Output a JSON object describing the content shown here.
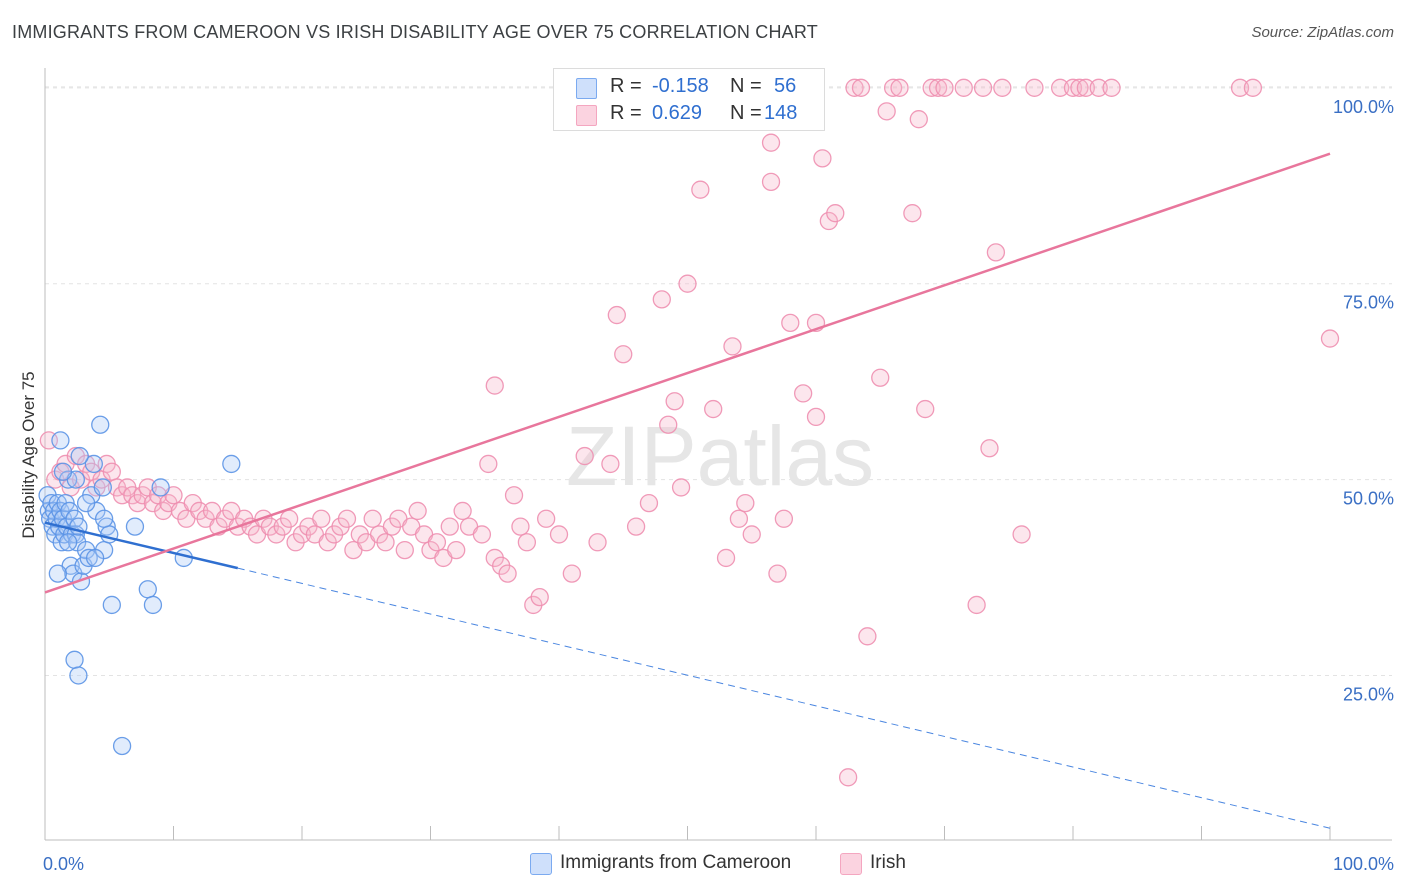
{
  "title": "IMMIGRANTS FROM CAMEROON VS IRISH DISABILITY AGE OVER 75 CORRELATION CHART",
  "source": "Source: ZipAtlas.com",
  "watermark": "ZIPatlas",
  "legend": {
    "rows": [
      {
        "r_label": "R =",
        "r_value": "-0.158",
        "n_label": "N =",
        "n_value": "56",
        "color": "#7baaf0"
      },
      {
        "r_label": "R =",
        "r_value": "0.629",
        "n_label": "N =",
        "n_value": "148",
        "color": "#f4a6c0"
      }
    ]
  },
  "bottom_legend": [
    {
      "label": "Immigrants from Cameroon",
      "color": "#7baaf0"
    },
    {
      "label": "Irish",
      "color": "#f4a6c0"
    }
  ],
  "chart_data": {
    "type": "scatter",
    "title": "IMMIGRANTS FROM CAMEROON VS IRISH DISABILITY AGE OVER 75 CORRELATION CHART",
    "xlabel": "",
    "ylabel": "Disability Age Over 75",
    "xlim": [
      0,
      100
    ],
    "ylim": [
      4,
      101
    ],
    "x_tick_labels": [
      "0.0%",
      "100.0%"
    ],
    "y_tick_labels": [
      "25.0%",
      "50.0%",
      "75.0%",
      "100.0%"
    ],
    "y_ticks": [
      25,
      50,
      75,
      100
    ],
    "grid": "horizontal dashed",
    "legend_position": "top-center",
    "series": [
      {
        "name": "Immigrants from Cameroon",
        "color": "#5b93e6",
        "r": -0.158,
        "n": 56,
        "trend": {
          "x0": 0,
          "y0": 44.5,
          "x1": 15,
          "y1": 38.7,
          "dash_to_x": 100,
          "dash_to_y": 5.5
        },
        "points": [
          [
            0.2,
            48
          ],
          [
            0.3,
            46
          ],
          [
            0.4,
            45
          ],
          [
            0.5,
            47
          ],
          [
            0.6,
            44
          ],
          [
            0.7,
            46
          ],
          [
            0.8,
            43
          ],
          [
            0.9,
            45
          ],
          [
            1.0,
            47
          ],
          [
            1.1,
            44
          ],
          [
            1.2,
            46
          ],
          [
            1.3,
            42
          ],
          [
            1.4,
            45
          ],
          [
            1.5,
            43
          ],
          [
            1.6,
            47
          ],
          [
            1.7,
            44
          ],
          [
            1.8,
            50
          ],
          [
            1.9,
            46
          ],
          [
            2.0,
            39
          ],
          [
            2.1,
            43
          ],
          [
            2.2,
            38
          ],
          [
            2.3,
            45
          ],
          [
            2.4,
            43
          ],
          [
            2.5,
            42
          ],
          [
            2.6,
            44
          ],
          [
            2.8,
            37
          ],
          [
            3.0,
            39
          ],
          [
            3.2,
            41
          ],
          [
            3.4,
            40
          ],
          [
            3.6,
            48
          ],
          [
            3.8,
            52
          ],
          [
            4.0,
            46
          ],
          [
            4.3,
            57
          ],
          [
            4.6,
            41
          ],
          [
            4.8,
            44
          ],
          [
            5.0,
            43
          ],
          [
            2.3,
            27
          ],
          [
            2.6,
            25
          ],
          [
            4.5,
            49
          ],
          [
            1.2,
            55
          ],
          [
            2.4,
            50
          ],
          [
            2.7,
            53
          ],
          [
            3.9,
            40
          ],
          [
            5.2,
            34
          ],
          [
            6.0,
            16
          ],
          [
            7.0,
            44
          ],
          [
            8.0,
            36
          ],
          [
            8.4,
            34
          ],
          [
            9.0,
            49
          ],
          [
            10.8,
            40
          ],
          [
            14.5,
            52
          ],
          [
            1.0,
            38
          ],
          [
            1.4,
            51
          ],
          [
            3.2,
            47
          ],
          [
            4.6,
            45
          ],
          [
            1.8,
            42
          ]
        ]
      },
      {
        "name": "Irish",
        "color": "#f08cae",
        "r": 0.629,
        "n": 148,
        "trend": {
          "x0": 0,
          "y0": 35.6,
          "x1": 100,
          "y1": 91.6
        },
        "points": [
          [
            0.3,
            55
          ],
          [
            0.8,
            50
          ],
          [
            1.2,
            51
          ],
          [
            1.6,
            52
          ],
          [
            2.0,
            49
          ],
          [
            2.4,
            53
          ],
          [
            2.8,
            50
          ],
          [
            3.2,
            52
          ],
          [
            3.6,
            51
          ],
          [
            4.0,
            49
          ],
          [
            4.4,
            50
          ],
          [
            4.8,
            52
          ],
          [
            5.2,
            51
          ],
          [
            5.6,
            49
          ],
          [
            6.0,
            48
          ],
          [
            6.4,
            49
          ],
          [
            6.8,
            48
          ],
          [
            7.2,
            47
          ],
          [
            7.6,
            48
          ],
          [
            8.0,
            49
          ],
          [
            8.4,
            47
          ],
          [
            8.8,
            48
          ],
          [
            9.2,
            46
          ],
          [
            9.6,
            47
          ],
          [
            10.0,
            48
          ],
          [
            10.5,
            46
          ],
          [
            11.0,
            45
          ],
          [
            11.5,
            47
          ],
          [
            12.0,
            46
          ],
          [
            12.5,
            45
          ],
          [
            13.0,
            46
          ],
          [
            13.5,
            44
          ],
          [
            14.0,
            45
          ],
          [
            14.5,
            46
          ],
          [
            15.0,
            44
          ],
          [
            15.5,
            45
          ],
          [
            16.0,
            44
          ],
          [
            16.5,
            43
          ],
          [
            17.0,
            45
          ],
          [
            17.5,
            44
          ],
          [
            18.0,
            43
          ],
          [
            18.5,
            44
          ],
          [
            19.0,
            45
          ],
          [
            19.5,
            42
          ],
          [
            20.0,
            43
          ],
          [
            20.5,
            44
          ],
          [
            21.0,
            43
          ],
          [
            21.5,
            45
          ],
          [
            22.0,
            42
          ],
          [
            22.5,
            43
          ],
          [
            23.0,
            44
          ],
          [
            23.5,
            45
          ],
          [
            24.0,
            41
          ],
          [
            24.5,
            43
          ],
          [
            25.0,
            42
          ],
          [
            25.5,
            45
          ],
          [
            26.0,
            43
          ],
          [
            26.5,
            42
          ],
          [
            27.0,
            44
          ],
          [
            27.5,
            45
          ],
          [
            28.0,
            41
          ],
          [
            28.5,
            44
          ],
          [
            29.0,
            46
          ],
          [
            29.5,
            43
          ],
          [
            30.0,
            41
          ],
          [
            30.5,
            42
          ],
          [
            31.0,
            40
          ],
          [
            31.5,
            44
          ],
          [
            32.0,
            41
          ],
          [
            32.5,
            46
          ],
          [
            33.0,
            44
          ],
          [
            34.0,
            43
          ],
          [
            34.5,
            52
          ],
          [
            35.0,
            40
          ],
          [
            35.5,
            39
          ],
          [
            36.0,
            38
          ],
          [
            36.5,
            48
          ],
          [
            37.0,
            44
          ],
          [
            37.5,
            42
          ],
          [
            38.0,
            34
          ],
          [
            38.5,
            35
          ],
          [
            39.0,
            45
          ],
          [
            40.0,
            43
          ],
          [
            41.0,
            38
          ],
          [
            42.0,
            53
          ],
          [
            43.0,
            42
          ],
          [
            44.0,
            52
          ],
          [
            44.5,
            71
          ],
          [
            45.0,
            66
          ],
          [
            46.0,
            44
          ],
          [
            47.0,
            47
          ],
          [
            48.0,
            73
          ],
          [
            48.5,
            57
          ],
          [
            49.0,
            60
          ],
          [
            49.5,
            49
          ],
          [
            50.0,
            75
          ],
          [
            51.0,
            87
          ],
          [
            52.0,
            59
          ],
          [
            53.0,
            40
          ],
          [
            53.5,
            67
          ],
          [
            54.0,
            45
          ],
          [
            54.5,
            47
          ],
          [
            55.0,
            43
          ],
          [
            56.0,
            97
          ],
          [
            56.5,
            93
          ],
          [
            56.0,
            96
          ],
          [
            56.5,
            88
          ],
          [
            57.0,
            38
          ],
          [
            57.5,
            45
          ],
          [
            58.0,
            70
          ],
          [
            59.0,
            61
          ],
          [
            60.0,
            70
          ],
          [
            60.5,
            91
          ],
          [
            60.0,
            58
          ],
          [
            61.0,
            83
          ],
          [
            61.5,
            84
          ],
          [
            63.0,
            100
          ],
          [
            63.5,
            100
          ],
          [
            64.0,
            30
          ],
          [
            65.0,
            63
          ],
          [
            65.5,
            97
          ],
          [
            66.0,
            100
          ],
          [
            66.5,
            100
          ],
          [
            67.5,
            84
          ],
          [
            68.0,
            96
          ],
          [
            68.5,
            59
          ],
          [
            69.0,
            100
          ],
          [
            69.5,
            100
          ],
          [
            70.0,
            100
          ],
          [
            71.5,
            100
          ],
          [
            72.5,
            34
          ],
          [
            73.0,
            100
          ],
          [
            73.5,
            54
          ],
          [
            74.0,
            79
          ],
          [
            74.5,
            100
          ],
          [
            76.0,
            43
          ],
          [
            77.0,
            100
          ],
          [
            79.0,
            100
          ],
          [
            80.0,
            100
          ],
          [
            80.5,
            100
          ],
          [
            81.0,
            100
          ],
          [
            82.0,
            100
          ],
          [
            83.0,
            100
          ],
          [
            93.0,
            100
          ],
          [
            94.0,
            100
          ],
          [
            35.0,
            62
          ],
          [
            62.5,
            12
          ],
          [
            100.0,
            68
          ]
        ]
      }
    ]
  }
}
